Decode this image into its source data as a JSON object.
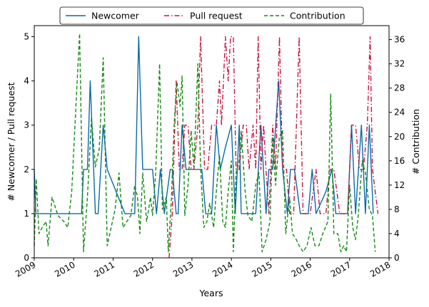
{
  "chart_data": {
    "type": "line",
    "xlabel": "Years",
    "ylabel_left": "# Newcomer / Pull request",
    "ylabel_right": "# Contribution",
    "xlim": [
      2009,
      2018
    ],
    "ylim_left": [
      0,
      5.25
    ],
    "ylim_right": [
      0,
      38.3
    ],
    "x_ticks": [
      "2009",
      "2010",
      "2011",
      "2012",
      "2013",
      "2014",
      "2015",
      "2016",
      "2017",
      "2018"
    ],
    "y_left_ticks": [
      "0",
      "1",
      "2",
      "3",
      "4",
      "5"
    ],
    "y_right_ticks": [
      "0",
      "4",
      "8",
      "12",
      "16",
      "20",
      "24",
      "28",
      "32",
      "36"
    ],
    "grid": false,
    "legend_position": "top-center",
    "series": [
      {
        "name": "Newcomer",
        "axis": "left",
        "color": "#0a6aa8",
        "style": "solid",
        "points": [
          [
            2009.0,
            2
          ],
          [
            2009.04,
            1
          ],
          [
            2009.3,
            1
          ],
          [
            2009.7,
            1
          ],
          [
            2010.0,
            1
          ],
          [
            2010.2,
            1
          ],
          [
            2010.25,
            2
          ],
          [
            2010.35,
            2
          ],
          [
            2010.42,
            4
          ],
          [
            2010.55,
            1
          ],
          [
            2010.62,
            1
          ],
          [
            2010.75,
            3
          ],
          [
            2010.85,
            2
          ],
          [
            2011.3,
            1
          ],
          [
            2011.55,
            1
          ],
          [
            2011.65,
            5
          ],
          [
            2011.75,
            2
          ],
          [
            2011.9,
            2
          ],
          [
            2012.0,
            2
          ],
          [
            2012.1,
            1
          ],
          [
            2012.2,
            2
          ],
          [
            2012.3,
            1
          ],
          [
            2012.45,
            2
          ],
          [
            2012.5,
            2
          ],
          [
            2012.6,
            1
          ],
          [
            2012.65,
            1
          ],
          [
            2012.75,
            3
          ],
          [
            2012.85,
            2
          ],
          [
            2012.95,
            2
          ],
          [
            2013.1,
            2
          ],
          [
            2013.25,
            2
          ],
          [
            2013.35,
            1
          ],
          [
            2013.5,
            1
          ],
          [
            2013.62,
            3
          ],
          [
            2013.72,
            2
          ],
          [
            2013.85,
            2.5
          ],
          [
            2014.0,
            3
          ],
          [
            2014.1,
            1
          ],
          [
            2014.2,
            3
          ],
          [
            2014.25,
            1
          ],
          [
            2014.4,
            1
          ],
          [
            2014.55,
            1
          ],
          [
            2014.62,
            1
          ],
          [
            2014.75,
            3
          ],
          [
            2014.88,
            1
          ],
          [
            2014.95,
            2
          ],
          [
            2015.05,
            2
          ],
          [
            2015.2,
            4
          ],
          [
            2015.3,
            2
          ],
          [
            2015.42,
            1
          ],
          [
            2015.5,
            2
          ],
          [
            2015.6,
            2
          ],
          [
            2015.75,
            1
          ],
          [
            2015.85,
            1
          ],
          [
            2015.95,
            1
          ],
          [
            2016.05,
            2
          ],
          [
            2016.15,
            1
          ],
          [
            2016.4,
            1.5
          ],
          [
            2016.55,
            2
          ],
          [
            2016.65,
            1
          ],
          [
            2016.85,
            1
          ],
          [
            2016.95,
            1
          ],
          [
            2017.05,
            3
          ],
          [
            2017.15,
            1
          ],
          [
            2017.3,
            3
          ],
          [
            2017.4,
            1
          ],
          [
            2017.5,
            3
          ],
          [
            2017.6,
            1
          ]
        ]
      },
      {
        "name": "Pull request",
        "axis": "left",
        "color": "#c8133f",
        "style": "dashdot",
        "points": [
          [
            2012.42,
            0
          ],
          [
            2012.5,
            1
          ],
          [
            2012.6,
            4
          ],
          [
            2012.68,
            2
          ],
          [
            2012.75,
            2
          ],
          [
            2012.82,
            3
          ],
          [
            2012.9,
            3
          ],
          [
            2012.98,
            2
          ],
          [
            2013.05,
            2
          ],
          [
            2013.15,
            3
          ],
          [
            2013.22,
            5
          ],
          [
            2013.32,
            2
          ],
          [
            2013.4,
            2
          ],
          [
            2013.5,
            3
          ],
          [
            2013.62,
            3
          ],
          [
            2013.7,
            4
          ],
          [
            2013.75,
            3
          ],
          [
            2013.85,
            5
          ],
          [
            2013.92,
            4
          ],
          [
            2013.98,
            5
          ],
          [
            2014.05,
            5
          ],
          [
            2014.12,
            2
          ],
          [
            2014.2,
            2
          ],
          [
            2014.3,
            3
          ],
          [
            2014.38,
            3
          ],
          [
            2014.45,
            2
          ],
          [
            2014.55,
            3
          ],
          [
            2014.62,
            2
          ],
          [
            2014.68,
            5
          ],
          [
            2014.75,
            2
          ],
          [
            2014.82,
            3
          ],
          [
            2014.88,
            2
          ],
          [
            2014.95,
            1
          ],
          [
            2015.05,
            3
          ],
          [
            2015.12,
            2
          ],
          [
            2015.22,
            5
          ],
          [
            2015.3,
            2
          ],
          [
            2015.4,
            2
          ],
          [
            2015.48,
            1
          ],
          [
            2015.58,
            1
          ],
          [
            2015.72,
            5
          ],
          [
            2015.82,
            1
          ],
          [
            2015.92,
            1
          ],
          [
            2016.0,
            1
          ],
          [
            2016.15,
            2
          ],
          [
            2016.25,
            1
          ],
          [
            2016.4,
            1
          ],
          [
            2016.5,
            2
          ],
          [
            2016.6,
            2
          ],
          [
            2016.75,
            1
          ],
          [
            2016.85,
            1
          ],
          [
            2016.95,
            1
          ],
          [
            2017.05,
            3
          ],
          [
            2017.15,
            3
          ],
          [
            2017.25,
            2
          ],
          [
            2017.35,
            2
          ],
          [
            2017.45,
            3
          ],
          [
            2017.52,
            5
          ],
          [
            2017.58,
            2
          ],
          [
            2017.72,
            1
          ]
        ]
      },
      {
        "name": "Contribution",
        "axis": "right",
        "color": "#138a13",
        "style": "dashed",
        "points": [
          [
            2009.0,
            2
          ],
          [
            2009.05,
            13
          ],
          [
            2009.12,
            4
          ],
          [
            2009.2,
            5
          ],
          [
            2009.3,
            6
          ],
          [
            2009.35,
            2
          ],
          [
            2009.45,
            10
          ],
          [
            2009.6,
            7
          ],
          [
            2009.75,
            6
          ],
          [
            2009.85,
            5
          ],
          [
            2009.95,
            11
          ],
          [
            2010.08,
            28
          ],
          [
            2010.15,
            37
          ],
          [
            2010.25,
            1
          ],
          [
            2010.35,
            10
          ],
          [
            2010.45,
            23
          ],
          [
            2010.55,
            15
          ],
          [
            2010.65,
            18
          ],
          [
            2010.75,
            33
          ],
          [
            2010.85,
            2
          ],
          [
            2010.95,
            5
          ],
          [
            2011.05,
            8
          ],
          [
            2011.15,
            14
          ],
          [
            2011.25,
            5
          ],
          [
            2011.35,
            6
          ],
          [
            2011.45,
            7
          ],
          [
            2011.55,
            12
          ],
          [
            2011.62,
            10
          ],
          [
            2011.68,
            4
          ],
          [
            2011.75,
            14
          ],
          [
            2011.85,
            6
          ],
          [
            2011.95,
            10
          ],
          [
            2012.0,
            7
          ],
          [
            2012.08,
            14
          ],
          [
            2012.18,
            32
          ],
          [
            2012.25,
            8
          ],
          [
            2012.35,
            10
          ],
          [
            2012.4,
            1
          ],
          [
            2012.48,
            10
          ],
          [
            2012.55,
            22
          ],
          [
            2012.62,
            29
          ],
          [
            2012.7,
            25
          ],
          [
            2012.75,
            30
          ],
          [
            2012.82,
            7
          ],
          [
            2012.9,
            12
          ],
          [
            2012.98,
            21
          ],
          [
            2013.05,
            15
          ],
          [
            2013.15,
            32
          ],
          [
            2013.22,
            15
          ],
          [
            2013.3,
            5
          ],
          [
            2013.38,
            6
          ],
          [
            2013.45,
            9
          ],
          [
            2013.55,
            5
          ],
          [
            2013.62,
            11
          ],
          [
            2013.7,
            17
          ],
          [
            2013.78,
            6
          ],
          [
            2013.85,
            5
          ],
          [
            2013.92,
            11
          ],
          [
            2014.0,
            16
          ],
          [
            2014.05,
            1
          ],
          [
            2014.12,
            14
          ],
          [
            2014.2,
            16
          ],
          [
            2014.25,
            21
          ],
          [
            2014.35,
            11
          ],
          [
            2014.42,
            7
          ],
          [
            2014.52,
            6
          ],
          [
            2014.62,
            12
          ],
          [
            2014.7,
            14
          ],
          [
            2014.78,
            1
          ],
          [
            2014.88,
            3
          ],
          [
            2014.98,
            6
          ],
          [
            2015.05,
            20
          ],
          [
            2015.12,
            12
          ],
          [
            2015.22,
            20
          ],
          [
            2015.3,
            21
          ],
          [
            2015.38,
            4
          ],
          [
            2015.48,
            10
          ],
          [
            2015.55,
            4
          ],
          [
            2015.65,
            3
          ],
          [
            2015.72,
            2
          ],
          [
            2015.82,
            1
          ],
          [
            2015.92,
            2
          ],
          [
            2016.02,
            5
          ],
          [
            2016.12,
            2
          ],
          [
            2016.22,
            2
          ],
          [
            2016.32,
            4
          ],
          [
            2016.45,
            6
          ],
          [
            2016.52,
            27
          ],
          [
            2016.6,
            4
          ],
          [
            2016.7,
            4
          ],
          [
            2016.78,
            1
          ],
          [
            2016.85,
            2
          ],
          [
            2016.92,
            1
          ],
          [
            2017.0,
            12
          ],
          [
            2017.08,
            5
          ],
          [
            2017.15,
            3
          ],
          [
            2017.22,
            7
          ],
          [
            2017.32,
            16
          ],
          [
            2017.4,
            14
          ],
          [
            2017.5,
            8
          ],
          [
            2017.58,
            7
          ],
          [
            2017.65,
            1
          ]
        ]
      }
    ]
  }
}
